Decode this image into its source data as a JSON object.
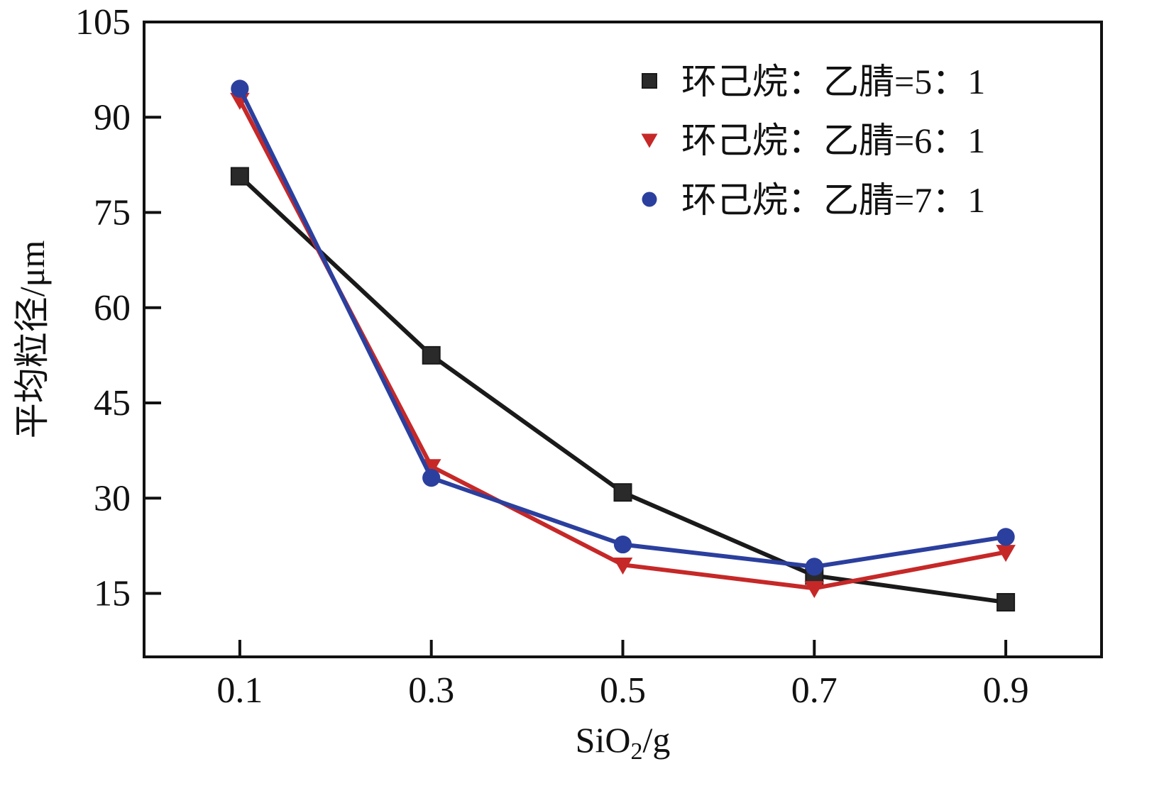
{
  "chart_data": {
    "type": "line",
    "title": "",
    "xlabel": "SiO2/g",
    "xlabel_main": "SiO",
    "xlabel_sub": "2",
    "xlabel_tail": "/g",
    "ylabel": "平均粒径/μm",
    "xlim": [
      0.0,
      1.0
    ],
    "ylim": [
      5,
      105
    ],
    "grid": false,
    "legend_position": "top-right",
    "x": [
      0.1,
      0.3,
      0.5,
      0.7,
      0.9
    ],
    "x_tick_labels": [
      "0.1",
      "0.3",
      "0.5",
      "0.7",
      "0.9"
    ],
    "y_ticks": [
      15,
      30,
      45,
      60,
      75,
      90,
      105
    ],
    "y_tick_labels": [
      "15",
      "30",
      "45",
      "60",
      "75",
      "90",
      "105"
    ],
    "series": [
      {
        "name": "环己烷：乙腈=5：1",
        "marker": "square",
        "color": "#1a1a1a",
        "values": [
          80.7,
          52.5,
          30.9,
          17.8,
          13.6
        ]
      },
      {
        "name": "环己烷：乙腈=6：1",
        "marker": "triangle-down",
        "color": "#c62828",
        "values": [
          92.7,
          35.0,
          19.5,
          15.8,
          21.5
        ]
      },
      {
        "name": "环己烷：乙腈=7：1",
        "marker": "circle",
        "color": "#2b3f9e",
        "values": [
          94.5,
          33.2,
          22.7,
          19.2,
          23.9
        ]
      }
    ]
  }
}
